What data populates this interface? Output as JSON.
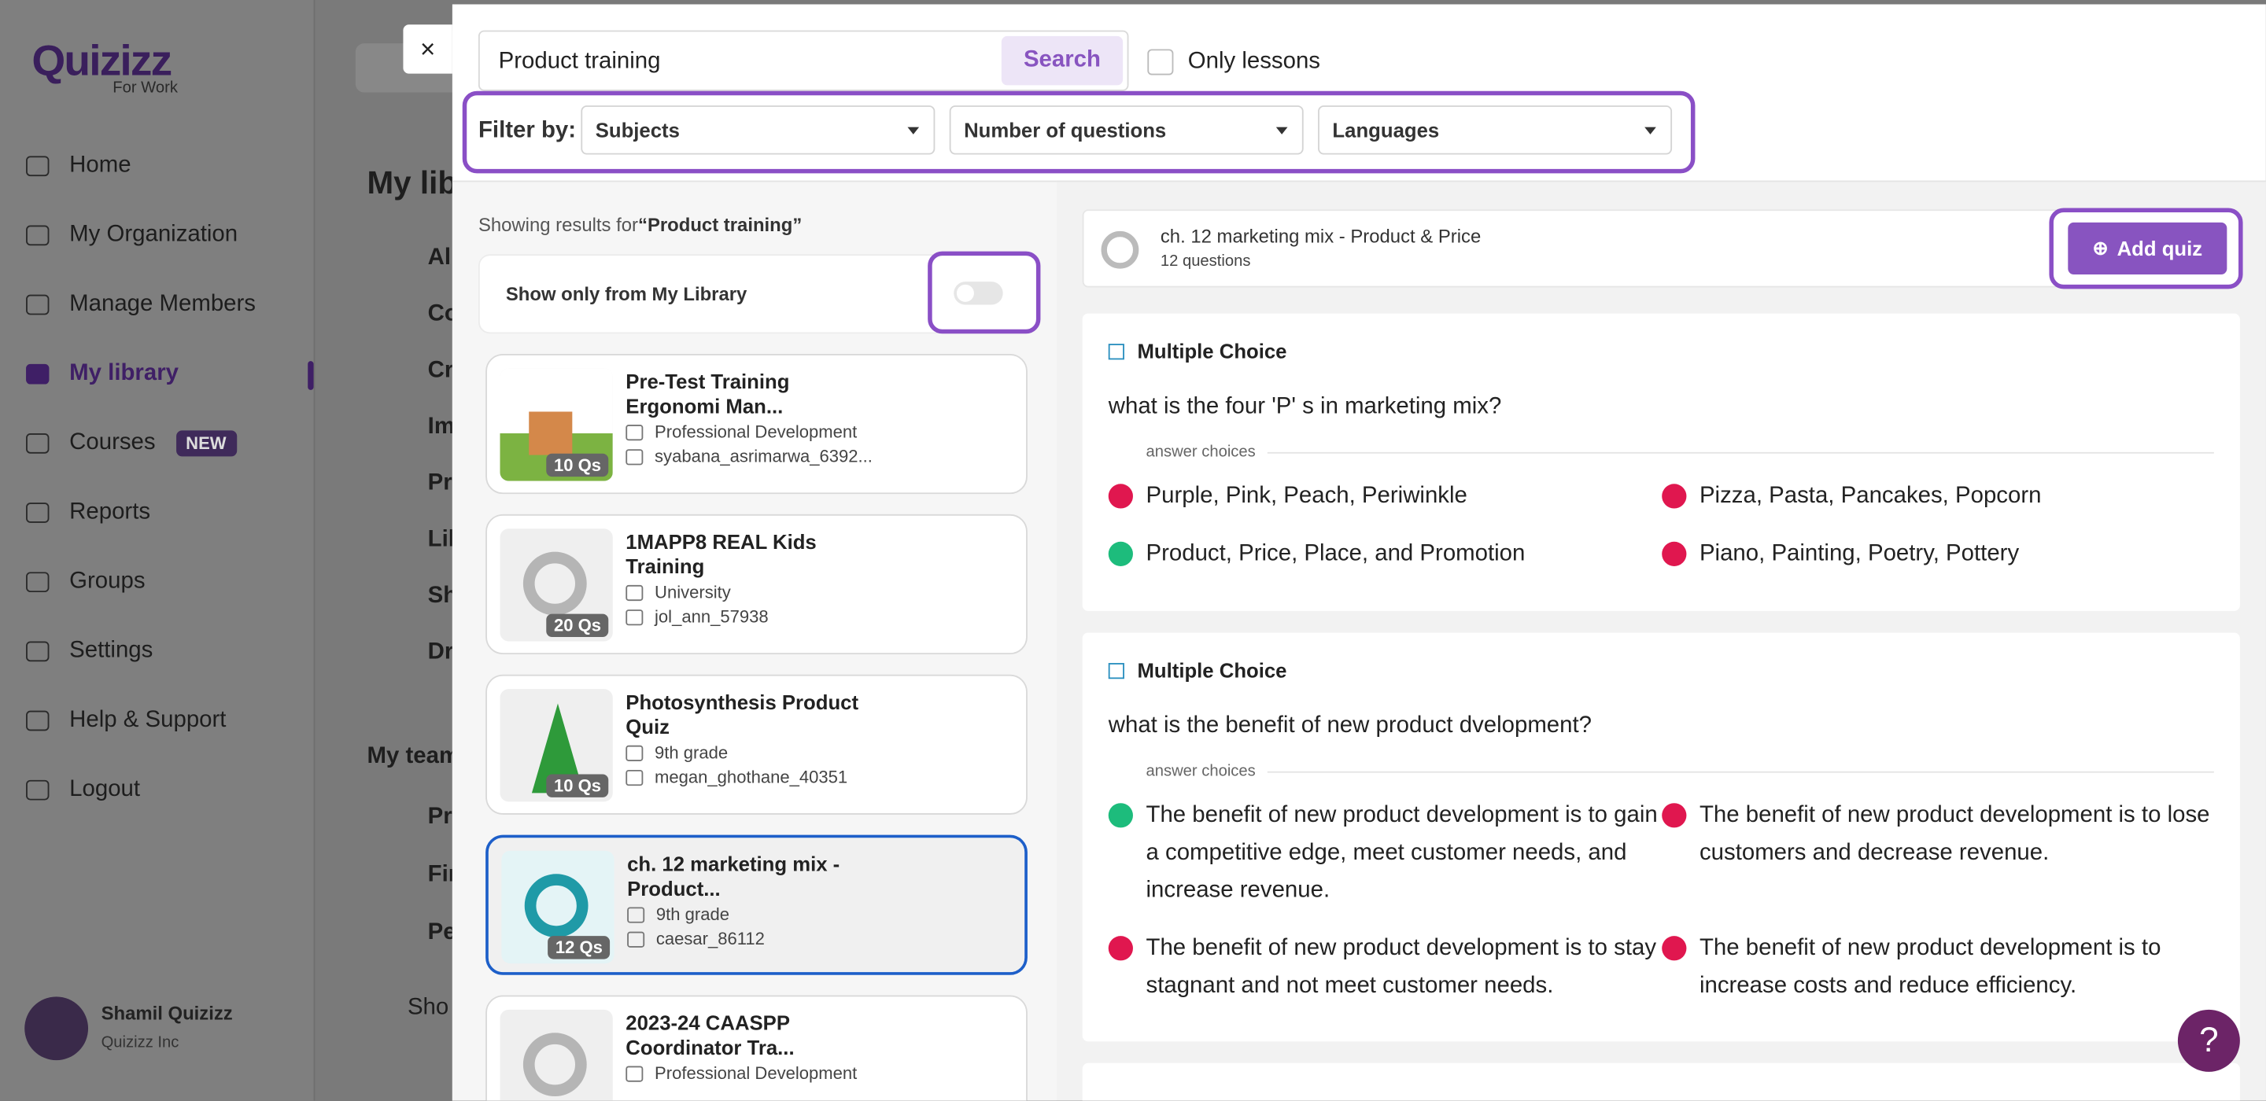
{
  "sidebar": {
    "logo": "Quizizz",
    "logo_sub": "For Work",
    "nav": [
      {
        "label": "Home"
      },
      {
        "label": "My Organization"
      },
      {
        "label": "Manage Members"
      },
      {
        "label": "My library",
        "active": true
      },
      {
        "label": "Courses",
        "badge": "NEW"
      },
      {
        "label": "Reports"
      },
      {
        "label": "Groups"
      },
      {
        "label": "Settings"
      },
      {
        "label": "Help & Support"
      },
      {
        "label": "Logout"
      }
    ],
    "user": {
      "name": "Shamil Quizizz",
      "org": "Quizizz Inc"
    }
  },
  "background": {
    "heading": "My lib",
    "items": [
      "All",
      "Co",
      "Cr",
      "Im",
      "Pr",
      "Lik",
      "Sh",
      "Dr"
    ],
    "team_heading": "My team",
    "team_items": [
      "Pr",
      "Fir",
      "Pe"
    ],
    "show_more": "Sho"
  },
  "modal": {
    "close": "×",
    "search": {
      "value": "Product training",
      "button": "Search"
    },
    "only_lessons": "Only lessons",
    "filter": {
      "label": "Filter by:",
      "dropdowns": [
        "Subjects",
        "Number of questions",
        "Languages"
      ]
    },
    "results": {
      "prefix": "Showing results for",
      "query": "“Product training”",
      "toggle_label": "Show only from My Library",
      "items": [
        {
          "title": "Pre-Test Training Ergonomi Man...",
          "subject": "Professional Development",
          "author": "syabana_asrimarwa_6392...",
          "count": "10 Qs",
          "thumb": "image"
        },
        {
          "title": "1MAPP8 REAL Kids Training",
          "subject": "University",
          "author": "jol_ann_57938",
          "count": "20 Qs",
          "thumb": "logo"
        },
        {
          "title": "Photosynthesis Product Quiz",
          "subject": "9th grade",
          "author": "megan_ghothane_40351",
          "count": "10 Qs",
          "thumb": "tree"
        },
        {
          "title": "ch. 12 marketing mix - Product...",
          "subject": "9th grade",
          "author": "caesar_86112",
          "count": "12 Qs",
          "thumb": "logo",
          "selected": true
        },
        {
          "title": "2023-24 CAASPP Coordinator Tra...",
          "subject": "Professional Development",
          "author": "",
          "count": "",
          "thumb": "logo"
        }
      ]
    },
    "preview": {
      "title": "ch. 12 marketing mix - Product & Price",
      "subtitle": "12 questions",
      "button": "Add quiz",
      "questions": [
        {
          "type": "Multiple Choice",
          "text": "what is the four 'P' s in marketing mix?",
          "choices_label": "answer choices",
          "options": [
            {
              "text": "Purple, Pink, Peach, Periwinkle",
              "correct": false
            },
            {
              "text": "Pizza, Pasta, Pancakes, Popcorn",
              "correct": false
            },
            {
              "text": "Product, Price, Place, and Promotion",
              "correct": true
            },
            {
              "text": "Piano, Painting, Poetry, Pottery",
              "correct": false
            }
          ]
        },
        {
          "type": "Multiple Choice",
          "text": "what is the benefit of new product dvelopment?",
          "choices_label": "answer choices",
          "options": [
            {
              "text": "The benefit of new product development is to gain a competitive edge, meet customer needs, and increase revenue.",
              "correct": true
            },
            {
              "text": "The benefit of new product development is to lose customers and decrease revenue.",
              "correct": false
            },
            {
              "text": "The benefit of new product development is to stay stagnant and not meet customer needs.",
              "correct": false
            },
            {
              "text": "The benefit of new product development is to increase costs and reduce efficiency.",
              "correct": false
            }
          ]
        }
      ]
    },
    "help": "?"
  }
}
